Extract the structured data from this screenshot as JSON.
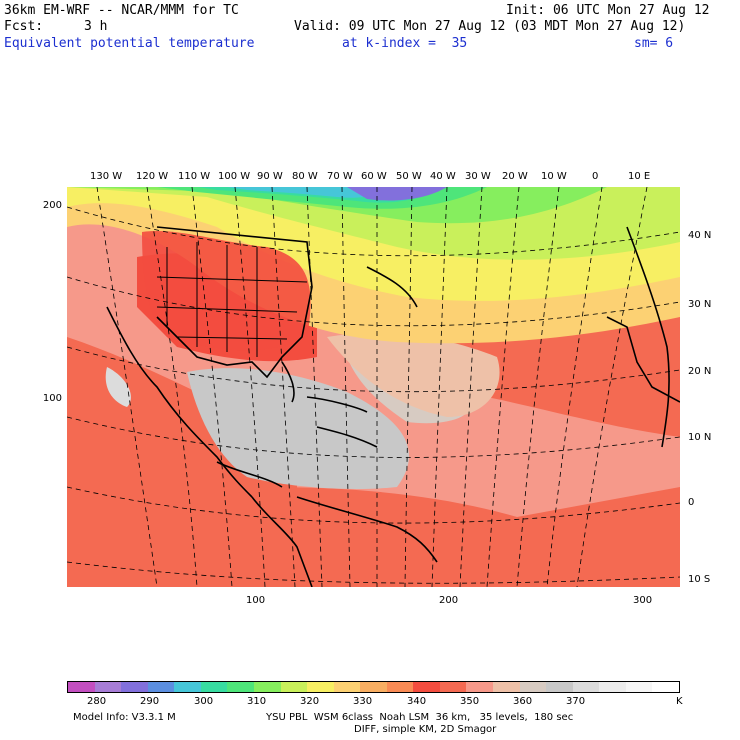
{
  "header": {
    "model_title": "36km EM-WRF -- NCAR/MMM for TC",
    "init": "Init: 06 UTC Mon 27 Aug 12",
    "fcst_label": "Fcst:",
    "fcst_value": "3 h",
    "valid": "Valid: 09 UTC Mon 27 Aug 12 (03 MDT Mon 27 Aug 12)",
    "field": "Equivalent potential temperature",
    "level": "at k-index =  35",
    "smooth": "sm= 6"
  },
  "map": {
    "lon_labels": [
      "130 W",
      "120 W",
      "110 W",
      "100 W",
      "90 W",
      "80 W",
      "70 W",
      "60 W",
      "50 W",
      "40 W",
      "30 W",
      "20 W",
      "10 W",
      "0",
      "10 E"
    ],
    "lat_labels": [
      "40 N",
      "30 N",
      "20 N",
      "10 N",
      "0",
      "10 S"
    ],
    "grid_y_labels": [
      "200",
      "100"
    ],
    "grid_x_labels": [
      "100",
      "200",
      "300"
    ]
  },
  "colorbar": {
    "colors": [
      "#c34fc0",
      "#a77dd6",
      "#8270dc",
      "#5c8fe0",
      "#46c6d8",
      "#38dca1",
      "#4ee57a",
      "#86ee5e",
      "#c9f05b",
      "#f7ef63",
      "#fcd173",
      "#f8ae62",
      "#f98b55",
      "#f34d3f",
      "#f46a52",
      "#f6998a",
      "#eec1a8",
      "#d7cbc2",
      "#c8c8c8",
      "#dcdcdc",
      "#ececec",
      "#f6f6f6",
      "#ffffff"
    ],
    "labels": [
      "280",
      "290",
      "300",
      "310",
      "320",
      "330",
      "340",
      "350",
      "360",
      "370"
    ],
    "unit": "K"
  },
  "footer": {
    "model_info": "Model Info: V3.3.1 M",
    "physics": "YSU PBL  WSM 6class  Noah LSM  36 km,   35 levels,  180 sec",
    "diff": "DIFF, simple KM, 2D Smagor"
  }
}
